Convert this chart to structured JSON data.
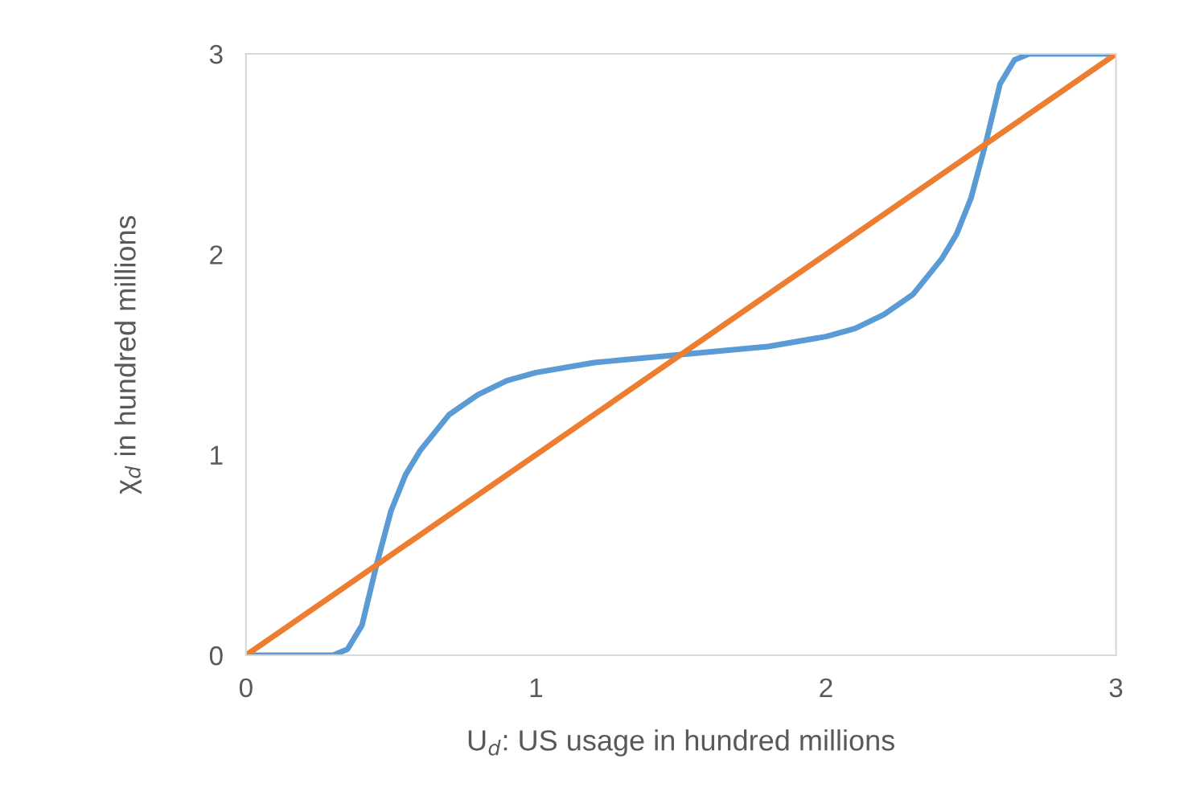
{
  "chart_data": {
    "type": "line",
    "xlabel": "U$_{d}$: US usage in hundred millions",
    "ylabel": "χ$_{d}$ in hundred millions",
    "series": [
      {
        "color": "#5b9bd5",
        "x": [
          0,
          0.3,
          0.35,
          0.4,
          0.45,
          0.5,
          0.55,
          0.6,
          0.7,
          0.8,
          0.9,
          1.0,
          1.2,
          1.5,
          1.8,
          2.0,
          2.1,
          2.2,
          2.3,
          2.4,
          2.45,
          2.5,
          2.55,
          2.6,
          2.65,
          2.7,
          3
        ],
        "values": [
          0,
          0,
          0.03,
          0.15,
          0.45,
          0.72,
          0.9,
          1.02,
          1.2,
          1.3,
          1.37,
          1.41,
          1.46,
          1.5,
          1.54,
          1.59,
          1.63,
          1.7,
          1.8,
          1.98,
          2.1,
          2.28,
          2.55,
          2.85,
          2.97,
          3,
          3
        ]
      },
      {
        "color": "#ed7d31",
        "x": [
          0,
          3
        ],
        "values": [
          0,
          3
        ]
      }
    ],
    "xlim": [
      0,
      3
    ],
    "ylim": [
      0,
      3
    ],
    "xticks": [
      0,
      1,
      2,
      3
    ],
    "yticks": [
      0,
      1,
      2,
      3
    ],
    "grid": false,
    "legend": false,
    "marker": "none",
    "line_style": "solid"
  }
}
